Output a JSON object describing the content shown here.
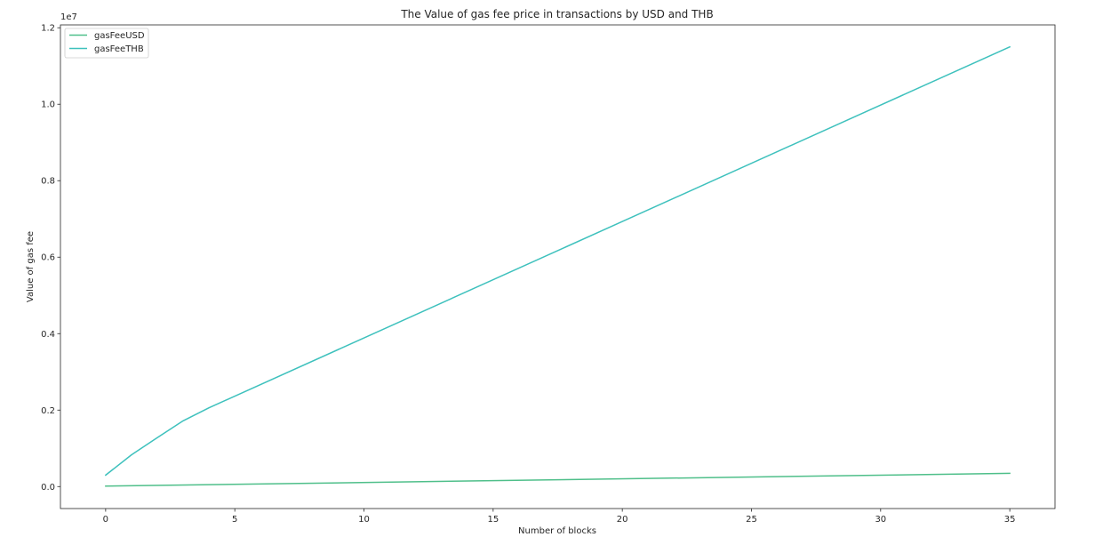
{
  "chart_data": {
    "type": "line",
    "title": "The Value of gas fee price in transactions by USD and THB",
    "xlabel": "Number of blocks",
    "ylabel": "Value of gas fee",
    "y_offset_label": "1e7",
    "xlim": [
      -1.75,
      36.75
    ],
    "ylim": [
      -575000,
      12075000
    ],
    "xticks": [
      0,
      5,
      10,
      15,
      20,
      25,
      30,
      35
    ],
    "xtick_labels": [
      "0",
      "5",
      "10",
      "15",
      "20",
      "25",
      "30",
      "35"
    ],
    "yticks": [
      0,
      2000000,
      4000000,
      6000000,
      8000000,
      10000000,
      12000000
    ],
    "ytick_labels": [
      "0.0",
      "0.2",
      "0.4",
      "0.6",
      "0.8",
      "1.0",
      "1.2"
    ],
    "legend_position": "upper-left",
    "grid": false,
    "series": [
      {
        "name": "gasFeeUSD",
        "color": "#4fbf8a",
        "points": [
          [
            0,
            10000
          ],
          [
            35,
            345000
          ]
        ]
      },
      {
        "name": "gasFeeTHB",
        "color": "#3ec1bd",
        "points": [
          [
            0,
            300000
          ],
          [
            1,
            830000
          ],
          [
            2,
            1280000
          ],
          [
            3,
            1720000
          ],
          [
            4,
            2060000
          ],
          [
            35,
            11500000
          ]
        ]
      }
    ]
  }
}
